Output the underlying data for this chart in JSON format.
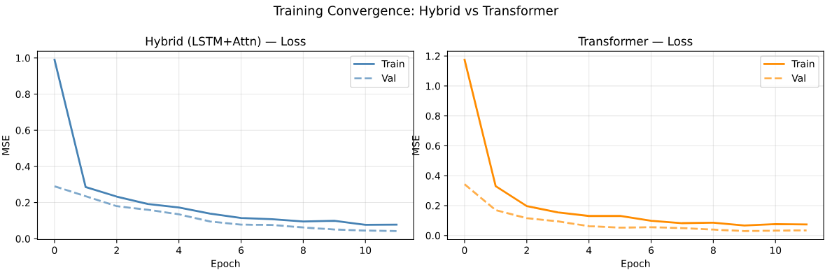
{
  "chart_data": [
    {
      "type": "line",
      "title": "Hybrid (LSTM+Attn) — Loss",
      "xlabel": "Epoch",
      "ylabel": "MSE",
      "annotations": [
        "Training Convergence: Hybrid vs Transformer"
      ],
      "x": [
        0,
        1,
        2,
        3,
        4,
        5,
        6,
        7,
        8,
        9,
        10,
        11
      ],
      "xlim": [
        -0.55,
        11.55
      ],
      "xticks": [
        0,
        2,
        4,
        6,
        8,
        10
      ],
      "ylim": [
        -0.005,
        1.037
      ],
      "yticks": [
        {
          "value": 0,
          "label": "0.0"
        },
        {
          "value": 0.2,
          "label": "0.2"
        },
        {
          "value": 0.4,
          "label": "0.4"
        },
        {
          "value": 0.6,
          "label": "0.6"
        },
        {
          "value": 0.8,
          "label": "0.8"
        },
        {
          "value": 1,
          "label": "1.0"
        }
      ],
      "grid": true,
      "legend": "top right",
      "series": [
        {
          "name": "Train",
          "color": "#4682b4",
          "line_style": "solid",
          "values": [
            0.99,
            0.286,
            0.233,
            0.192,
            0.173,
            0.139,
            0.115,
            0.108,
            0.095,
            0.099,
            0.077,
            0.078
          ]
        },
        {
          "name": "Val",
          "color": "#7ea8cb",
          "line_style": "dashed",
          "values": [
            0.29,
            0.235,
            0.18,
            0.16,
            0.135,
            0.095,
            0.078,
            0.076,
            0.062,
            0.051,
            0.045,
            0.042
          ]
        }
      ]
    },
    {
      "type": "line",
      "title": "Transformer — Loss",
      "xlabel": "Epoch",
      "ylabel": "MSE",
      "x": [
        0,
        1,
        2,
        3,
        4,
        5,
        6,
        7,
        8,
        9,
        10,
        11
      ],
      "xlim": [
        -0.55,
        11.55
      ],
      "xticks": [
        0,
        2,
        4,
        6,
        8,
        10
      ],
      "ylim": [
        -0.027,
        1.232
      ],
      "yticks": [
        {
          "value": 0,
          "label": "0.0"
        },
        {
          "value": 0.2,
          "label": "0.2"
        },
        {
          "value": 0.4,
          "label": "0.4"
        },
        {
          "value": 0.6,
          "label": "0.6"
        },
        {
          "value": 0.8,
          "label": "0.8"
        },
        {
          "value": 1,
          "label": "1.0"
        },
        {
          "value": 1.2,
          "label": "1.2"
        }
      ],
      "grid": true,
      "legend": "top right",
      "series": [
        {
          "name": "Train",
          "color": "#ff8c00",
          "line_style": "solid",
          "values": [
            1.175,
            0.33,
            0.197,
            0.155,
            0.131,
            0.131,
            0.099,
            0.083,
            0.086,
            0.067,
            0.077,
            0.074
          ]
        },
        {
          "name": "Val",
          "color": "#ffaf4c",
          "line_style": "dashed",
          "values": [
            0.343,
            0.17,
            0.116,
            0.095,
            0.063,
            0.053,
            0.056,
            0.05,
            0.04,
            0.03,
            0.033,
            0.035
          ]
        }
      ]
    }
  ]
}
